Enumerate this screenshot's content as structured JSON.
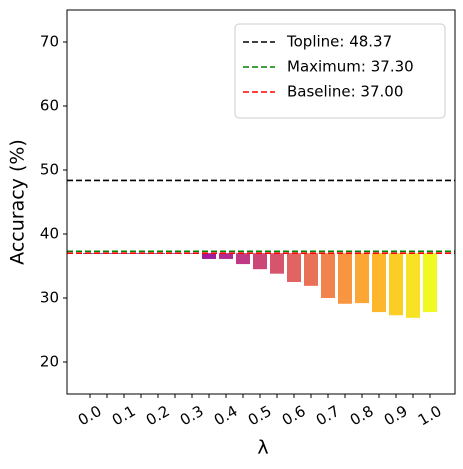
{
  "chart_data": {
    "type": "bar",
    "categories": [
      "0.0",
      null,
      "0.1",
      null,
      "0.2",
      null,
      "0.3",
      null,
      "0.4",
      null,
      "0.5",
      null,
      "0.6",
      null,
      "0.7",
      null,
      "0.8",
      null,
      "0.9",
      null,
      "1.0"
    ],
    "values": [
      37.0,
      37.0,
      37.0,
      37.0,
      36.9,
      36.9,
      36.9,
      36.1,
      36.1,
      35.3,
      34.5,
      33.8,
      32.5,
      31.9,
      30.0,
      29.1,
      29.2,
      27.8,
      27.3,
      26.9,
      27.8
    ],
    "colors": [
      "#0d0887",
      "#2a0593",
      "#41049d",
      "#5601a4",
      "#6a00a8",
      "#7e03a8",
      "#8f0da4",
      "#a11b9b",
      "#b12a90",
      "#bf3984",
      "#cc4778",
      "#d6556d",
      "#e16462",
      "#e97158",
      "#f1834c",
      "#f89540",
      "#fca636",
      "#feb72d",
      "#fccd25",
      "#f7e225",
      "#f0f921"
    ],
    "lines": [
      {
        "label": "Topline: 48.37",
        "value": 48.37,
        "color": "#000000"
      },
      {
        "label": "Maximum: 37.30",
        "value": 37.3,
        "color": "#008000"
      },
      {
        "label": "Baseline: 37.00",
        "value": 37.0,
        "color": "#ff0000"
      }
    ],
    "xlabel": "λ",
    "ylabel": "Accuracy (%)",
    "ylim": [
      15,
      75
    ],
    "yticks": [
      20,
      30,
      40,
      50,
      60,
      70
    ],
    "legend": "upper right"
  }
}
